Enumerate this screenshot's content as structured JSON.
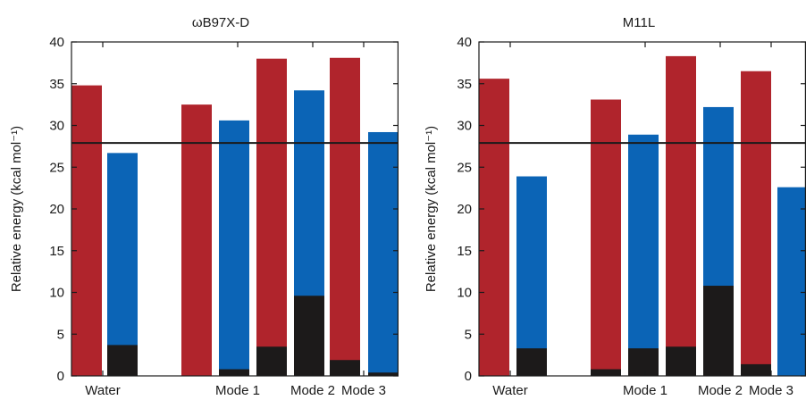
{
  "colors": {
    "red": "#b0242c",
    "blue": "#0b64b6",
    "black": "#1c1a1a",
    "reference_line": "#1a1a1a"
  },
  "chart_data": [
    {
      "type": "bar",
      "title": "ωB97X-D",
      "ylabel": "Relative energy (kcal mol⁻¹)",
      "xlabel": "",
      "ylim": [
        0,
        40
      ],
      "yticks": [
        0,
        5,
        10,
        15,
        20,
        25,
        30,
        35,
        40
      ],
      "category_labels": [
        "Water",
        "Mode 1",
        "Mode 2",
        "Mode 3"
      ],
      "reference_line": 27.9,
      "stacked": true,
      "bars": [
        {
          "color": "red",
          "total": 34.8,
          "black_base": 0.0
        },
        {
          "color": "blue",
          "total": 26.7,
          "black_base": 3.7
        },
        {
          "color": "red",
          "total": 32.5,
          "black_base": 0.0
        },
        {
          "color": "blue",
          "total": 30.6,
          "black_base": 0.8
        },
        {
          "color": "red",
          "total": 38.0,
          "black_base": 3.5
        },
        {
          "color": "blue",
          "total": 34.2,
          "black_base": 9.6
        },
        {
          "color": "red",
          "total": 38.1,
          "black_base": 1.9
        },
        {
          "color": "blue",
          "total": 29.2,
          "black_base": 0.4
        }
      ]
    },
    {
      "type": "bar",
      "title": "M11L",
      "ylabel": "Relative energy (kcal mol⁻¹)",
      "xlabel": "",
      "ylim": [
        0,
        40
      ],
      "yticks": [
        0,
        5,
        10,
        15,
        20,
        25,
        30,
        35,
        40
      ],
      "category_labels": [
        "Water",
        "Mode 1",
        "Mode 2",
        "Mode 3"
      ],
      "reference_line": 27.9,
      "stacked": true,
      "bars": [
        {
          "color": "red",
          "total": 35.6,
          "black_base": 0.0
        },
        {
          "color": "blue",
          "total": 23.9,
          "black_base": 3.3
        },
        {
          "color": "red",
          "total": 33.1,
          "black_base": 0.8
        },
        {
          "color": "blue",
          "total": 28.9,
          "black_base": 3.3
        },
        {
          "color": "red",
          "total": 38.3,
          "black_base": 3.5
        },
        {
          "color": "blue",
          "total": 32.2,
          "black_base": 10.8
        },
        {
          "color": "red",
          "total": 36.5,
          "black_base": 1.4
        },
        {
          "color": "blue",
          "total": 22.6,
          "black_base": 0.0
        }
      ]
    }
  ]
}
